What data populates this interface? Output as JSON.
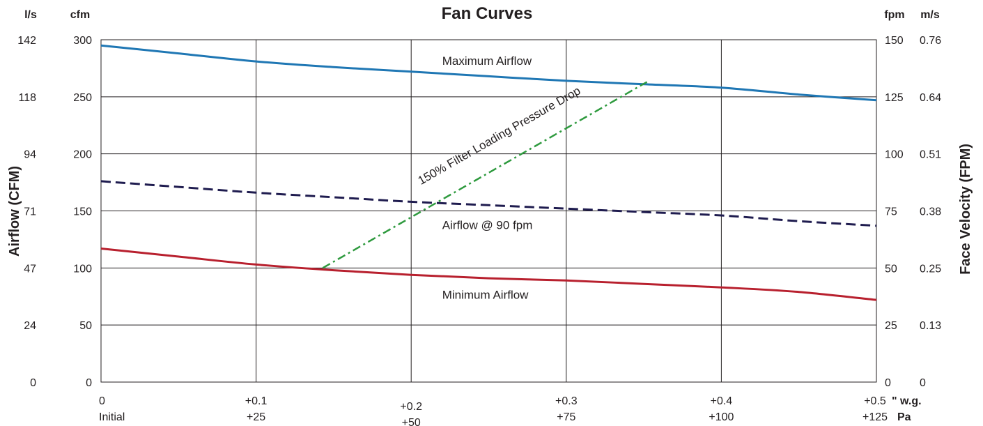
{
  "chart_data": {
    "type": "line",
    "title": "Fan Curves",
    "ylabel": "Airflow (CFM)",
    "y2label": "Face Velocity (FPM)",
    "units": {
      "left_outer": "l/s",
      "left_inner": "cfm",
      "right_inner": "fpm",
      "right_outer": "m/s",
      "x_top": "\" w.g.",
      "x_bottom": "Pa"
    },
    "xlim": [
      0,
      0.5
    ],
    "ylim": [
      0,
      300
    ],
    "grid": true,
    "x_ticks": [
      {
        "value": 0,
        "top": "0",
        "bottom": "Initial"
      },
      {
        "value": 0.1,
        "top": "+0.1",
        "bottom": "+25"
      },
      {
        "value": 0.2,
        "top": "+0.2",
        "bottom": "+50"
      },
      {
        "value": 0.3,
        "top": "+0.3",
        "bottom": "+75"
      },
      {
        "value": 0.4,
        "top": "+0.4",
        "bottom": "+100"
      },
      {
        "value": 0.5,
        "top": "+0.5",
        "bottom": "+125"
      }
    ],
    "y_ticks": [
      {
        "cfm": 0,
        "cfm_label": "0",
        "ls_label": "0",
        "fpm_label": "0",
        "ms_label": "0"
      },
      {
        "cfm": 50,
        "cfm_label": "50",
        "ls_label": "24",
        "fpm_label": "25",
        "ms_label": "0.13"
      },
      {
        "cfm": 100,
        "cfm_label": "100",
        "ls_label": "47",
        "fpm_label": "50",
        "ms_label": "0.25"
      },
      {
        "cfm": 150,
        "cfm_label": "150",
        "ls_label": "71",
        "fpm_label": "75",
        "ms_label": "0.38"
      },
      {
        "cfm": 200,
        "cfm_label": "200",
        "ls_label": "94",
        "fpm_label": "100",
        "ms_label": "0.51"
      },
      {
        "cfm": 250,
        "cfm_label": "250",
        "ls_label": "118",
        "fpm_label": "125",
        "ms_label": "0.64"
      },
      {
        "cfm": 300,
        "cfm_label": "300",
        "ls_label": "142",
        "fpm_label": "150",
        "ms_label": "0.76"
      }
    ],
    "series": [
      {
        "name": "Maximum Airflow",
        "style": "solid",
        "color": "#1f77b4",
        "x": [
          0,
          0.05,
          0.1,
          0.15,
          0.2,
          0.25,
          0.3,
          0.35,
          0.4,
          0.45,
          0.5
        ],
        "y": [
          295,
          288,
          281,
          276,
          272,
          268,
          264,
          261,
          258,
          252,
          247
        ]
      },
      {
        "name": "Airflow @ 90 fpm",
        "style": "dashed",
        "color": "#1f1c4f",
        "x": [
          0,
          0.05,
          0.1,
          0.15,
          0.2,
          0.25,
          0.3,
          0.35,
          0.4,
          0.45,
          0.5
        ],
        "y": [
          176,
          171,
          166,
          162,
          158,
          155,
          152,
          149,
          146,
          141,
          137
        ]
      },
      {
        "name": "Minimum Airflow",
        "style": "solid",
        "color": "#b8202e",
        "x": [
          0,
          0.05,
          0.1,
          0.15,
          0.2,
          0.25,
          0.3,
          0.35,
          0.4,
          0.45,
          0.5
        ],
        "y": [
          117,
          110,
          103,
          98,
          94,
          91,
          89,
          86,
          83,
          79,
          72
        ]
      },
      {
        "name": "150% Filter Loading Pressure Drop",
        "style": "dash-dot",
        "color": "#2e9a3e",
        "x": [
          0.143,
          0.352
        ],
        "y": [
          100,
          263
        ]
      }
    ],
    "series_label_positions": [
      {
        "x": 0.22,
        "y": 278,
        "rotate": false
      },
      {
        "x": 0.22,
        "y": 134,
        "rotate": false
      },
      {
        "x": 0.22,
        "y": 73,
        "rotate": false
      },
      {
        "x": 0.258,
        "y": 213,
        "rotate": true
      }
    ]
  }
}
